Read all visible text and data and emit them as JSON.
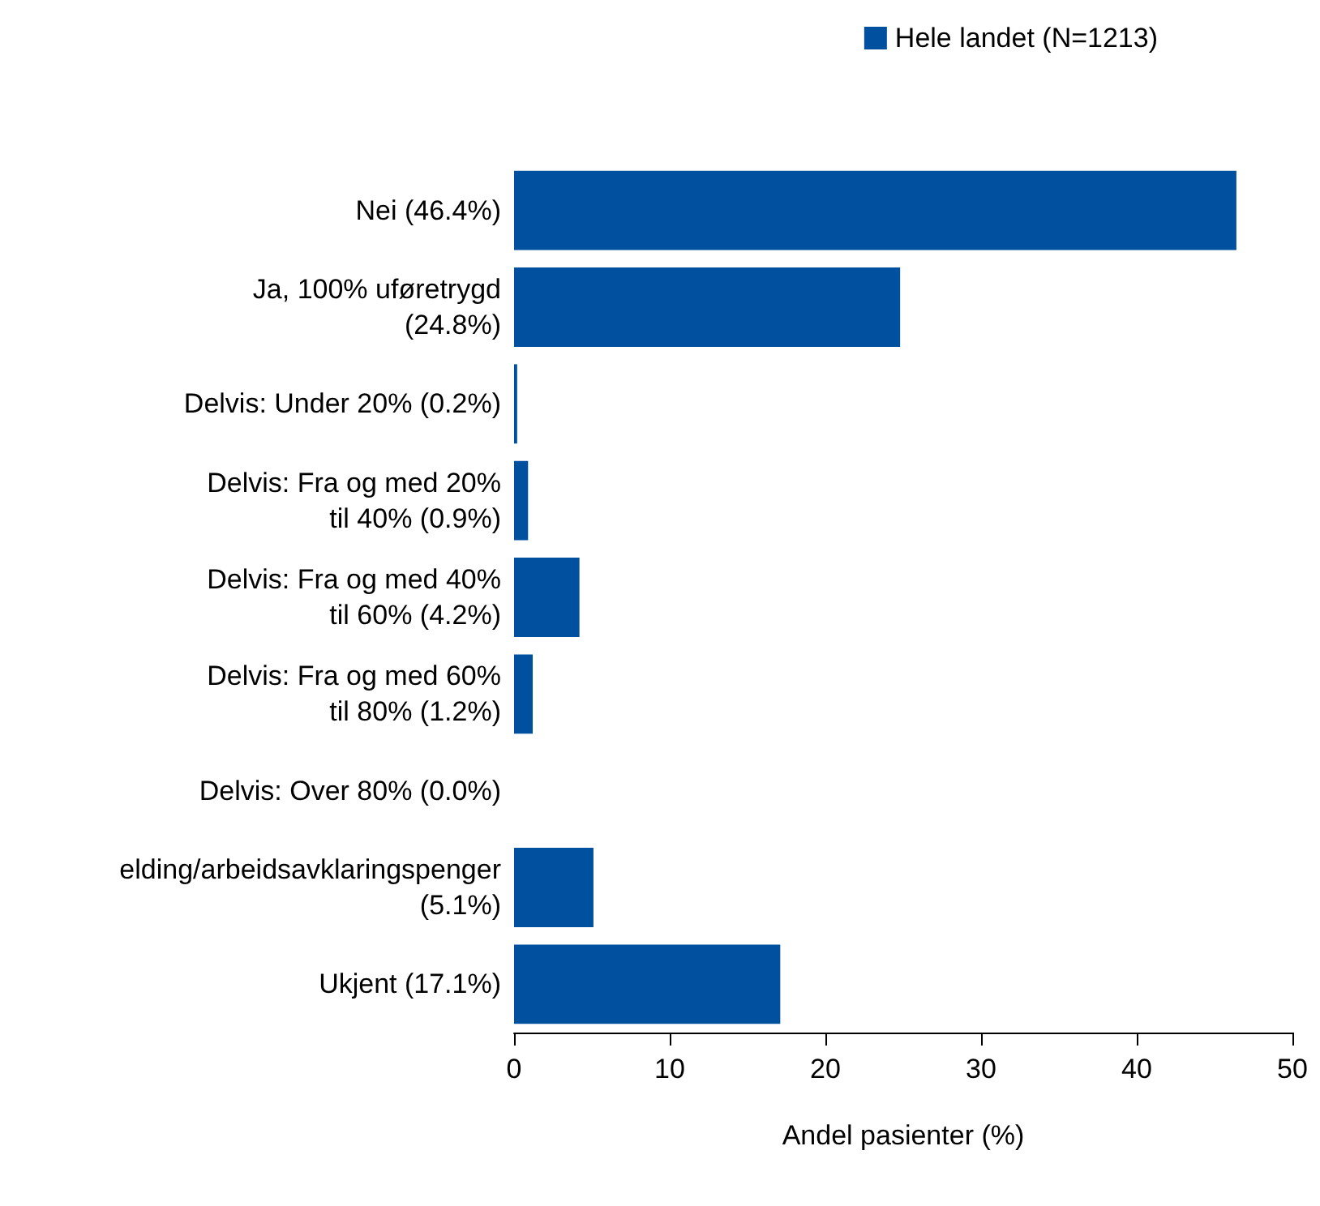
{
  "chart_data": {
    "type": "bar",
    "orientation": "horizontal",
    "xlabel": "Andel pasienter (%)",
    "categories": [
      "Nei (46.4%)",
      "Ja, 100% uføretrygd\n(24.8%)",
      "Delvis: Under 20% (0.2%)",
      "Delvis: Fra og med 20%\ntil 40% (0.9%)",
      "Delvis: Fra og med 40%\ntil 60% (4.2%)",
      "Delvis: Fra og med 60%\ntil 80% (1.2%)",
      "Delvis: Over 80% (0.0%)",
      "elding/arbeidsavklaringspenger\n(5.1%)",
      "Ukjent (17.1%)"
    ],
    "series": [
      {
        "name": "Hele landet (N=1213)",
        "color": "#0050a0",
        "values": [
          46.4,
          24.8,
          0.2,
          0.9,
          4.2,
          1.2,
          0.0,
          5.1,
          17.1
        ]
      }
    ],
    "xlim": [
      0,
      50
    ],
    "xticks": [
      0,
      10,
      20,
      30,
      40,
      50
    ],
    "grid": false,
    "legend": "top right"
  }
}
